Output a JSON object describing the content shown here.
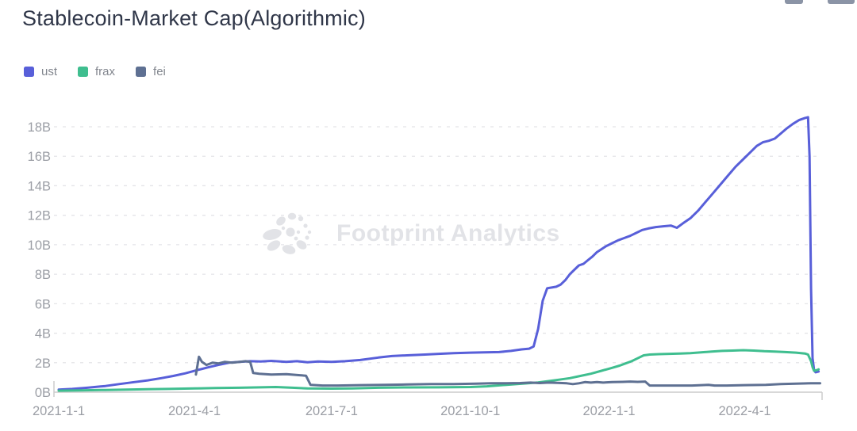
{
  "header": {
    "title": "Stablecoin-Market Cap(Algorithmic)"
  },
  "toolbar": {
    "icons": [
      "clipped-icon-left",
      "clipped-icon-right"
    ]
  },
  "watermark": {
    "text": "Footprint Analytics",
    "logo": "footprint-burst-logo"
  },
  "colors": {
    "background": "#ffffff",
    "title_text": "#2f3648",
    "axis_label": "#9b9ea5",
    "gridline": "#e4e4e8",
    "axis_line": "#cccccc",
    "legend_text": "#82868e",
    "watermark": "#e2e3e7"
  },
  "chart_data": {
    "type": "line",
    "title": "Stablecoin-Market Cap(Algorithmic)",
    "xlabel": "",
    "ylabel": "",
    "grid": "horizontal-dashed",
    "legend_position": "top-left",
    "x_axis": {
      "type": "time",
      "range": [
        "2021-01-01",
        "2022-05-24"
      ],
      "ticks": [
        {
          "date": "2021-01-01",
          "label": "2021-1-1"
        },
        {
          "date": "2021-04-01",
          "label": "2021-4-1"
        },
        {
          "date": "2021-07-01",
          "label": "2021-7-1"
        },
        {
          "date": "2021-10-01",
          "label": "2021-10-1"
        },
        {
          "date": "2022-01-01",
          "label": "2022-1-1"
        },
        {
          "date": "2022-04-01",
          "label": "2022-4-1"
        }
      ]
    },
    "y_axis": {
      "unit": "B",
      "range": [
        0,
        18
      ],
      "ticks": [
        {
          "value": 0,
          "label": "0B"
        },
        {
          "value": 2,
          "label": "2B"
        },
        {
          "value": 4,
          "label": "4B"
        },
        {
          "value": 6,
          "label": "6B"
        },
        {
          "value": 8,
          "label": "8B"
        },
        {
          "value": 10,
          "label": "10B"
        },
        {
          "value": 12,
          "label": "12B"
        },
        {
          "value": 14,
          "label": "14B"
        },
        {
          "value": 16,
          "label": "16B"
        },
        {
          "value": 18,
          "label": "18B"
        }
      ]
    },
    "series": [
      {
        "name": "ust",
        "color": "#585fd9",
        "points": [
          [
            "2021-01-01",
            0.18
          ],
          [
            "2021-01-10",
            0.22
          ],
          [
            "2021-01-20",
            0.3
          ],
          [
            "2021-02-01",
            0.42
          ],
          [
            "2021-02-10",
            0.55
          ],
          [
            "2021-02-20",
            0.68
          ],
          [
            "2021-03-01",
            0.8
          ],
          [
            "2021-03-10",
            0.95
          ],
          [
            "2021-03-18",
            1.1
          ],
          [
            "2021-03-26",
            1.28
          ],
          [
            "2021-04-03",
            1.5
          ],
          [
            "2021-04-10",
            1.68
          ],
          [
            "2021-04-17",
            1.85
          ],
          [
            "2021-04-24",
            2.0
          ],
          [
            "2021-05-01",
            2.05
          ],
          [
            "2021-05-08",
            2.1
          ],
          [
            "2021-05-15",
            2.08
          ],
          [
            "2021-05-22",
            2.12
          ],
          [
            "2021-06-01",
            2.05
          ],
          [
            "2021-06-08",
            2.1
          ],
          [
            "2021-06-15",
            2.03
          ],
          [
            "2021-06-22",
            2.08
          ],
          [
            "2021-07-01",
            2.05
          ],
          [
            "2021-07-10",
            2.1
          ],
          [
            "2021-07-20",
            2.18
          ],
          [
            "2021-08-01",
            2.35
          ],
          [
            "2021-08-10",
            2.45
          ],
          [
            "2021-08-20",
            2.5
          ],
          [
            "2021-09-01",
            2.55
          ],
          [
            "2021-09-10",
            2.6
          ],
          [
            "2021-09-20",
            2.65
          ],
          [
            "2021-10-01",
            2.68
          ],
          [
            "2021-10-10",
            2.7
          ],
          [
            "2021-10-20",
            2.72
          ],
          [
            "2021-10-28",
            2.8
          ],
          [
            "2021-11-04",
            2.9
          ],
          [
            "2021-11-09",
            2.95
          ],
          [
            "2021-11-12",
            3.1
          ],
          [
            "2021-11-15",
            4.3
          ],
          [
            "2021-11-18",
            6.2
          ],
          [
            "2021-11-21",
            7.05
          ],
          [
            "2021-11-24",
            7.1
          ],
          [
            "2021-11-27",
            7.15
          ],
          [
            "2021-11-30",
            7.3
          ],
          [
            "2021-12-03",
            7.6
          ],
          [
            "2021-12-06",
            8.0
          ],
          [
            "2021-12-09",
            8.3
          ],
          [
            "2021-12-12",
            8.6
          ],
          [
            "2021-12-15",
            8.7
          ],
          [
            "2021-12-18",
            8.95
          ],
          [
            "2021-12-21",
            9.2
          ],
          [
            "2021-12-24",
            9.5
          ],
          [
            "2021-12-27",
            9.7
          ],
          [
            "2021-12-30",
            9.9
          ],
          [
            "2022-01-03",
            10.1
          ],
          [
            "2022-01-07",
            10.3
          ],
          [
            "2022-01-11",
            10.45
          ],
          [
            "2022-01-15",
            10.6
          ],
          [
            "2022-01-19",
            10.8
          ],
          [
            "2022-01-23",
            11.0
          ],
          [
            "2022-01-27",
            11.1
          ],
          [
            "2022-02-01",
            11.2
          ],
          [
            "2022-02-06",
            11.25
          ],
          [
            "2022-02-11",
            11.3
          ],
          [
            "2022-02-15",
            11.15
          ],
          [
            "2022-02-19",
            11.45
          ],
          [
            "2022-02-24",
            11.8
          ],
          [
            "2022-03-01",
            12.3
          ],
          [
            "2022-03-06",
            12.9
          ],
          [
            "2022-03-11",
            13.5
          ],
          [
            "2022-03-16",
            14.1
          ],
          [
            "2022-03-21",
            14.7
          ],
          [
            "2022-03-26",
            15.3
          ],
          [
            "2022-03-31",
            15.8
          ],
          [
            "2022-04-05",
            16.3
          ],
          [
            "2022-04-09",
            16.7
          ],
          [
            "2022-04-13",
            16.95
          ],
          [
            "2022-04-17",
            17.05
          ],
          [
            "2022-04-21",
            17.2
          ],
          [
            "2022-04-25",
            17.55
          ],
          [
            "2022-04-29",
            17.9
          ],
          [
            "2022-05-03",
            18.2
          ],
          [
            "2022-05-07",
            18.45
          ],
          [
            "2022-05-11",
            18.6
          ],
          [
            "2022-05-13",
            18.65
          ],
          [
            "2022-05-14",
            16.0
          ],
          [
            "2022-05-15",
            7.0
          ],
          [
            "2022-05-16",
            2.3
          ],
          [
            "2022-05-17",
            1.5
          ],
          [
            "2022-05-18",
            1.35
          ],
          [
            "2022-05-20",
            1.4
          ]
        ]
      },
      {
        "name": "frax",
        "color": "#3fbe8f",
        "points": [
          [
            "2021-01-01",
            0.1
          ],
          [
            "2021-01-15",
            0.12
          ],
          [
            "2021-02-01",
            0.15
          ],
          [
            "2021-02-15",
            0.18
          ],
          [
            "2021-03-01",
            0.2
          ],
          [
            "2021-03-15",
            0.22
          ],
          [
            "2021-04-01",
            0.25
          ],
          [
            "2021-04-15",
            0.28
          ],
          [
            "2021-05-01",
            0.3
          ],
          [
            "2021-05-15",
            0.33
          ],
          [
            "2021-05-25",
            0.35
          ],
          [
            "2021-06-05",
            0.3
          ],
          [
            "2021-06-15",
            0.25
          ],
          [
            "2021-07-01",
            0.24
          ],
          [
            "2021-07-15",
            0.26
          ],
          [
            "2021-08-01",
            0.3
          ],
          [
            "2021-08-20",
            0.32
          ],
          [
            "2021-09-10",
            0.33
          ],
          [
            "2021-10-01",
            0.35
          ],
          [
            "2021-10-12",
            0.4
          ],
          [
            "2021-10-22",
            0.48
          ],
          [
            "2021-11-01",
            0.55
          ],
          [
            "2021-11-08",
            0.6
          ],
          [
            "2021-11-15",
            0.66
          ],
          [
            "2021-11-22",
            0.75
          ],
          [
            "2021-11-29",
            0.85
          ],
          [
            "2021-12-06",
            0.95
          ],
          [
            "2021-12-13",
            1.1
          ],
          [
            "2021-12-20",
            1.25
          ],
          [
            "2021-12-27",
            1.45
          ],
          [
            "2022-01-03",
            1.65
          ],
          [
            "2022-01-08",
            1.8
          ],
          [
            "2022-01-12",
            1.95
          ],
          [
            "2022-01-16",
            2.1
          ],
          [
            "2022-01-20",
            2.3
          ],
          [
            "2022-01-24",
            2.5
          ],
          [
            "2022-01-28",
            2.55
          ],
          [
            "2022-02-03",
            2.58
          ],
          [
            "2022-02-10",
            2.6
          ],
          [
            "2022-02-17",
            2.62
          ],
          [
            "2022-02-24",
            2.65
          ],
          [
            "2022-03-03",
            2.7
          ],
          [
            "2022-03-10",
            2.75
          ],
          [
            "2022-03-17",
            2.8
          ],
          [
            "2022-03-24",
            2.82
          ],
          [
            "2022-03-31",
            2.85
          ],
          [
            "2022-04-07",
            2.82
          ],
          [
            "2022-04-14",
            2.78
          ],
          [
            "2022-04-21",
            2.75
          ],
          [
            "2022-04-28",
            2.72
          ],
          [
            "2022-05-05",
            2.68
          ],
          [
            "2022-05-11",
            2.62
          ],
          [
            "2022-05-13",
            2.55
          ],
          [
            "2022-05-15",
            2.1
          ],
          [
            "2022-05-16",
            1.7
          ],
          [
            "2022-05-17",
            1.45
          ],
          [
            "2022-05-19",
            1.5
          ],
          [
            "2022-05-20",
            1.55
          ]
        ]
      },
      {
        "name": "fei",
        "color": "#5e7092",
        "points": [
          [
            "2021-04-02",
            1.2
          ],
          [
            "2021-04-04",
            2.4
          ],
          [
            "2021-04-06",
            2.05
          ],
          [
            "2021-04-09",
            1.85
          ],
          [
            "2021-04-13",
            2.0
          ],
          [
            "2021-04-17",
            1.95
          ],
          [
            "2021-04-21",
            2.05
          ],
          [
            "2021-04-26",
            2.0
          ],
          [
            "2021-05-01",
            2.05
          ],
          [
            "2021-05-05",
            2.1
          ],
          [
            "2021-05-08",
            2.05
          ],
          [
            "2021-05-10",
            1.3
          ],
          [
            "2021-05-14",
            1.25
          ],
          [
            "2021-05-22",
            1.2
          ],
          [
            "2021-06-01",
            1.22
          ],
          [
            "2021-06-10",
            1.15
          ],
          [
            "2021-06-14",
            1.12
          ],
          [
            "2021-06-17",
            0.5
          ],
          [
            "2021-06-25",
            0.45
          ],
          [
            "2021-07-05",
            0.45
          ],
          [
            "2021-07-20",
            0.48
          ],
          [
            "2021-08-05",
            0.5
          ],
          [
            "2021-08-20",
            0.52
          ],
          [
            "2021-09-05",
            0.55
          ],
          [
            "2021-09-20",
            0.55
          ],
          [
            "2021-10-05",
            0.58
          ],
          [
            "2021-10-15",
            0.6
          ],
          [
            "2021-10-25",
            0.6
          ],
          [
            "2021-11-03",
            0.62
          ],
          [
            "2021-11-10",
            0.65
          ],
          [
            "2021-11-16",
            0.62
          ],
          [
            "2021-11-22",
            0.65
          ],
          [
            "2021-11-28",
            0.63
          ],
          [
            "2021-12-04",
            0.6
          ],
          [
            "2021-12-08",
            0.55
          ],
          [
            "2021-12-12",
            0.6
          ],
          [
            "2021-12-16",
            0.68
          ],
          [
            "2021-12-20",
            0.65
          ],
          [
            "2021-12-24",
            0.68
          ],
          [
            "2021-12-28",
            0.65
          ],
          [
            "2022-01-03",
            0.68
          ],
          [
            "2022-01-10",
            0.7
          ],
          [
            "2022-01-15",
            0.72
          ],
          [
            "2022-01-20",
            0.7
          ],
          [
            "2022-01-25",
            0.72
          ],
          [
            "2022-01-28",
            0.45
          ],
          [
            "2022-02-10",
            0.45
          ],
          [
            "2022-02-25",
            0.45
          ],
          [
            "2022-03-08",
            0.5
          ],
          [
            "2022-03-12",
            0.45
          ],
          [
            "2022-03-20",
            0.45
          ],
          [
            "2022-04-01",
            0.48
          ],
          [
            "2022-04-15",
            0.5
          ],
          [
            "2022-04-25",
            0.55
          ],
          [
            "2022-05-05",
            0.58
          ],
          [
            "2022-05-15",
            0.6
          ],
          [
            "2022-05-21",
            0.6
          ]
        ]
      }
    ]
  }
}
